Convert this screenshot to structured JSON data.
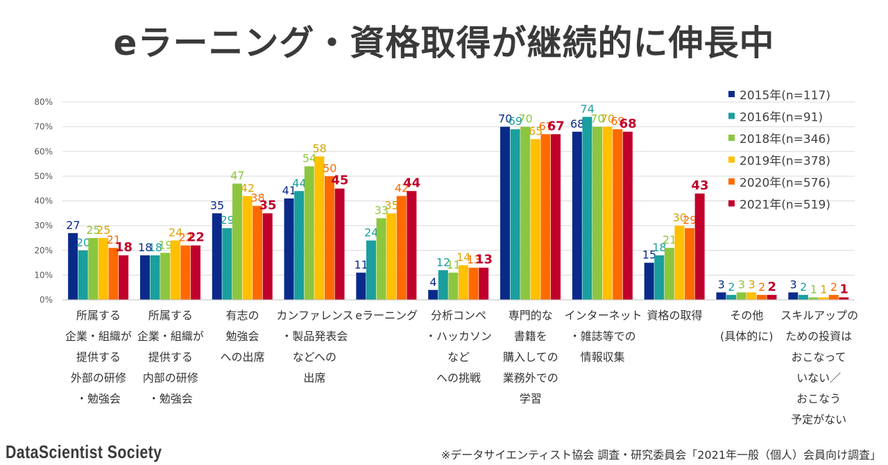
{
  "title": "eラーニング・資格取得が継続的に伸長中",
  "logo": "DataScientist Society",
  "footnote": "※データサイエンティスト協会 調査・研究委員会「2021年一般（個人）会員向け調査」",
  "chart_data": {
    "type": "bar",
    "ylim": [
      0,
      80
    ],
    "yticks": [
      "0%",
      "10%",
      "20%",
      "30%",
      "40%",
      "50%",
      "60%",
      "70%",
      "80%"
    ],
    "grid": true,
    "legend_position": "top-right",
    "categories": [
      [
        "所属する",
        "企業・組織が",
        "提供する",
        "外部の研修",
        "・勉強会"
      ],
      [
        "所属する",
        "企業・組織が",
        "提供する",
        "内部の研修",
        "・勉強会"
      ],
      [
        "有志の",
        "勉強会",
        "への出席"
      ],
      [
        "カンファレンス",
        "・製品発表会",
        "などへの",
        "出席"
      ],
      [
        "eラーニング"
      ],
      [
        "分析コンペ",
        "・ハッカソン",
        "など",
        "への挑戦"
      ],
      [
        "専門的な",
        "書籍を",
        "購入しての",
        "業務外での",
        "学習"
      ],
      [
        "インターネット",
        "・雑誌等での",
        "情報収集"
      ],
      [
        "資格の取得"
      ],
      [
        "その他",
        "(具体的に)"
      ],
      [
        "スキルアップの",
        "ための投資は",
        "おこなって",
        "いない／",
        "おこなう",
        "予定がない"
      ]
    ],
    "series": [
      {
        "name": "2015年(n=117)",
        "color": "#0a2a8a",
        "values": [
          27,
          18,
          35,
          41,
          11,
          4,
          70,
          68,
          15,
          3,
          3
        ]
      },
      {
        "name": "2016年(n=91)",
        "color": "#1a9e9e",
        "values": [
          20,
          18,
          29,
          44,
          24,
          12,
          69,
          74,
          18,
          2,
          2
        ]
      },
      {
        "name": "2018年(n=346)",
        "color": "#8cc63f",
        "values": [
          25,
          19,
          47,
          54,
          33,
          11,
          70,
          70,
          21,
          3,
          1
        ]
      },
      {
        "name": "2019年(n=378)",
        "color": "#ffc000",
        "values": [
          25,
          24,
          42,
          58,
          35,
          14,
          65,
          70,
          30,
          3,
          1
        ]
      },
      {
        "name": "2020年(n=576)",
        "color": "#ff6a00",
        "values": [
          21,
          22,
          38,
          50,
          42,
          13,
          67,
          69,
          29,
          2,
          2
        ]
      },
      {
        "name": "2021年(n=519)",
        "color": "#c0002a",
        "values": [
          18,
          22,
          35,
          45,
          44,
          13,
          67,
          68,
          43,
          2,
          1
        ]
      }
    ],
    "label_colors": [
      "#0a2a8a",
      "#1a9e9e",
      "#8cc63f",
      "#d9a400",
      "#ff6a00",
      "#c0002a"
    ]
  }
}
